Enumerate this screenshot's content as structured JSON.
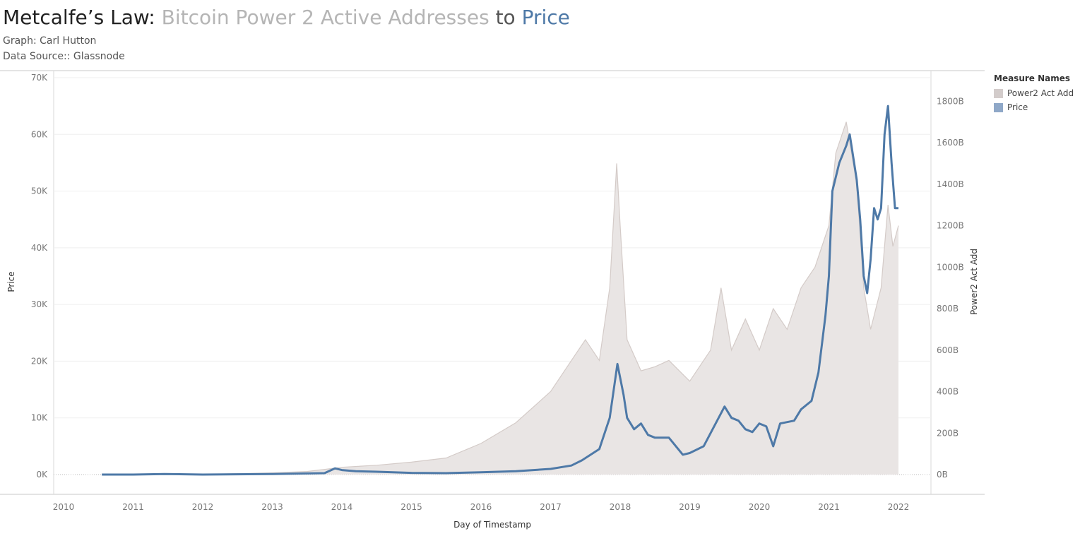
{
  "title": {
    "part1": "Metcalfe’s Law: ",
    "part2": "Bitcoin Power 2 Active Addresses",
    "part3": " to ",
    "part4": "Price"
  },
  "subtitle1": "Graph: Carl Hutton",
  "subtitle2": "Data Source:: Glassnode",
  "colors": {
    "area": "#e9e5e4",
    "area_line": "#d4cbc8",
    "price": "#4e79a7",
    "legend_area": "#d3cccb",
    "legend_price": "#8fa8c8"
  },
  "legend": {
    "title": "Measure Names",
    "items": [
      {
        "label": "Power2 Act Add",
        "color": "#d3cccb"
      },
      {
        "label": "Price",
        "color": "#8fa8c8"
      }
    ]
  },
  "chart_data": {
    "type": "line",
    "xlabel": "Day of Timestamp",
    "ylabel_left": "Price",
    "ylabel_right": "Power2 Act Add",
    "x_ticks": [
      "2010",
      "2011",
      "2012",
      "2013",
      "2014",
      "2015",
      "2016",
      "2017",
      "2018",
      "2019",
      "2020",
      "2021",
      "2022"
    ],
    "y_left_ticks": [
      "0K",
      "10K",
      "20K",
      "30K",
      "40K",
      "50K",
      "60K",
      "70K"
    ],
    "y_right_ticks": [
      "0B",
      "200B",
      "400B",
      "600B",
      "800B",
      "1000B",
      "1200B",
      "1400B",
      "1600B",
      "1800B"
    ],
    "y_left_range": [
      0,
      70000
    ],
    "y_right_range": [
      0,
      1920
    ],
    "grid": true,
    "legend_position": "right",
    "series": [
      {
        "name": "Power2 Act Add",
        "type": "area",
        "axis": "right",
        "x": [
          2010.55,
          2012.0,
          2013.0,
          2013.5,
          2014.0,
          2014.5,
          2015.0,
          2015.5,
          2016.0,
          2016.5,
          2017.0,
          2017.3,
          2017.5,
          2017.7,
          2017.85,
          2017.95,
          2018.0,
          2018.1,
          2018.3,
          2018.5,
          2018.7,
          2019.0,
          2019.3,
          2019.45,
          2019.6,
          2019.8,
          2020.0,
          2020.2,
          2020.4,
          2020.6,
          2020.8,
          2021.0,
          2021.1,
          2021.25,
          2021.4,
          2021.5,
          2021.6,
          2021.75,
          2021.85,
          2021.92,
          2022.0
        ],
        "values": [
          0,
          1,
          8,
          15,
          35,
          45,
          60,
          80,
          150,
          250,
          400,
          550,
          650,
          550,
          900,
          1500,
          1200,
          650,
          500,
          520,
          550,
          450,
          600,
          900,
          600,
          750,
          600,
          800,
          700,
          900,
          1000,
          1200,
          1550,
          1700,
          1400,
          900,
          700,
          900,
          1300,
          1100,
          1200
        ]
      },
      {
        "name": "Price",
        "type": "line",
        "axis": "left",
        "x": [
          2010.55,
          2011.0,
          2011.45,
          2012.0,
          2013.0,
          2013.3,
          2013.75,
          2013.9,
          2014.0,
          2014.2,
          2014.5,
          2015.0,
          2015.5,
          2016.0,
          2016.5,
          2017.0,
          2017.3,
          2017.45,
          2017.7,
          2017.85,
          2017.96,
          2018.05,
          2018.1,
          2018.2,
          2018.3,
          2018.4,
          2018.5,
          2018.6,
          2018.7,
          2018.9,
          2019.0,
          2019.2,
          2019.35,
          2019.5,
          2019.6,
          2019.7,
          2019.8,
          2019.9,
          2020.0,
          2020.1,
          2020.2,
          2020.3,
          2020.5,
          2020.6,
          2020.75,
          2020.85,
          2020.95,
          2021.0,
          2021.05,
          2021.15,
          2021.25,
          2021.3,
          2021.4,
          2021.45,
          2021.5,
          2021.55,
          2021.6,
          2021.65,
          2021.7,
          2021.75,
          2021.8,
          2021.85,
          2021.9,
          2021.95,
          2022.0
        ],
        "values": [
          0,
          0,
          100,
          0,
          100,
          150,
          250,
          1100,
          800,
          600,
          500,
          300,
          250,
          400,
          600,
          1000,
          1600,
          2500,
          4500,
          10000,
          19500,
          14000,
          10000,
          8000,
          9000,
          7000,
          6500,
          6500,
          6500,
          3500,
          3800,
          5000,
          8500,
          12000,
          10000,
          9500,
          8000,
          7500,
          9000,
          8500,
          5000,
          9000,
          9500,
          11500,
          13000,
          18000,
          28000,
          35000,
          50000,
          55000,
          58000,
          60000,
          52000,
          45000,
          35000,
          32000,
          38000,
          47000,
          45000,
          47000,
          60000,
          65000,
          55000,
          47000,
          47000
        ]
      }
    ]
  }
}
